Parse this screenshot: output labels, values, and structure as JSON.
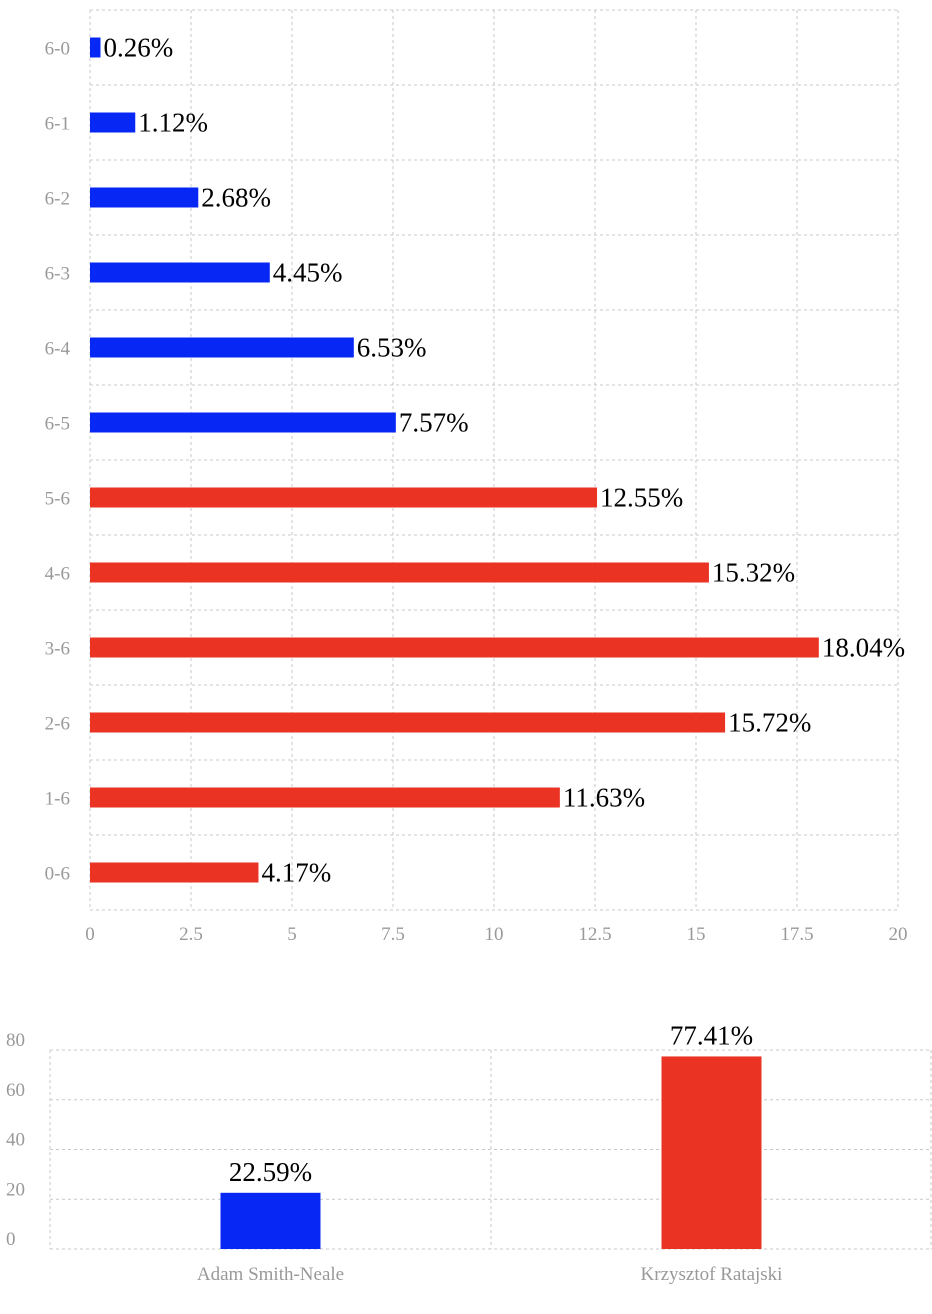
{
  "chart_data": [
    {
      "type": "bar",
      "orientation": "horizontal",
      "categories": [
        "6-0",
        "6-1",
        "6-2",
        "6-3",
        "6-4",
        "6-5",
        "5-6",
        "4-6",
        "3-6",
        "2-6",
        "1-6",
        "0-6"
      ],
      "values": [
        0.26,
        1.12,
        2.68,
        4.45,
        6.53,
        7.57,
        12.55,
        15.32,
        18.04,
        15.72,
        11.63,
        4.17
      ],
      "value_labels": [
        "0.26%",
        "1.12%",
        "2.68%",
        "4.45%",
        "6.53%",
        "7.57%",
        "12.55%",
        "15.32%",
        "18.04%",
        "15.72%",
        "11.63%",
        "4.17%"
      ],
      "bar_colors": [
        "#0727f5",
        "#0727f5",
        "#0727f5",
        "#0727f5",
        "#0727f5",
        "#0727f5",
        "#ea3323",
        "#ea3323",
        "#ea3323",
        "#ea3323",
        "#ea3323",
        "#ea3323"
      ],
      "xlim": [
        0,
        20
      ],
      "x_ticks": [
        "0",
        "2.5",
        "5",
        "7.5",
        "10",
        "12.5",
        "15",
        "17.5",
        "20"
      ],
      "grid": true
    },
    {
      "type": "bar",
      "orientation": "vertical",
      "categories": [
        "Adam Smith-Neale",
        "Krzysztof Ratajski"
      ],
      "values": [
        22.59,
        77.41
      ],
      "value_labels": [
        "22.59%",
        "77.41%"
      ],
      "bar_colors": [
        "#0727f5",
        "#ea3323"
      ],
      "ylim": [
        0,
        80
      ],
      "y_ticks": [
        "0",
        "20",
        "40",
        "60",
        "80"
      ],
      "grid": true
    }
  ]
}
